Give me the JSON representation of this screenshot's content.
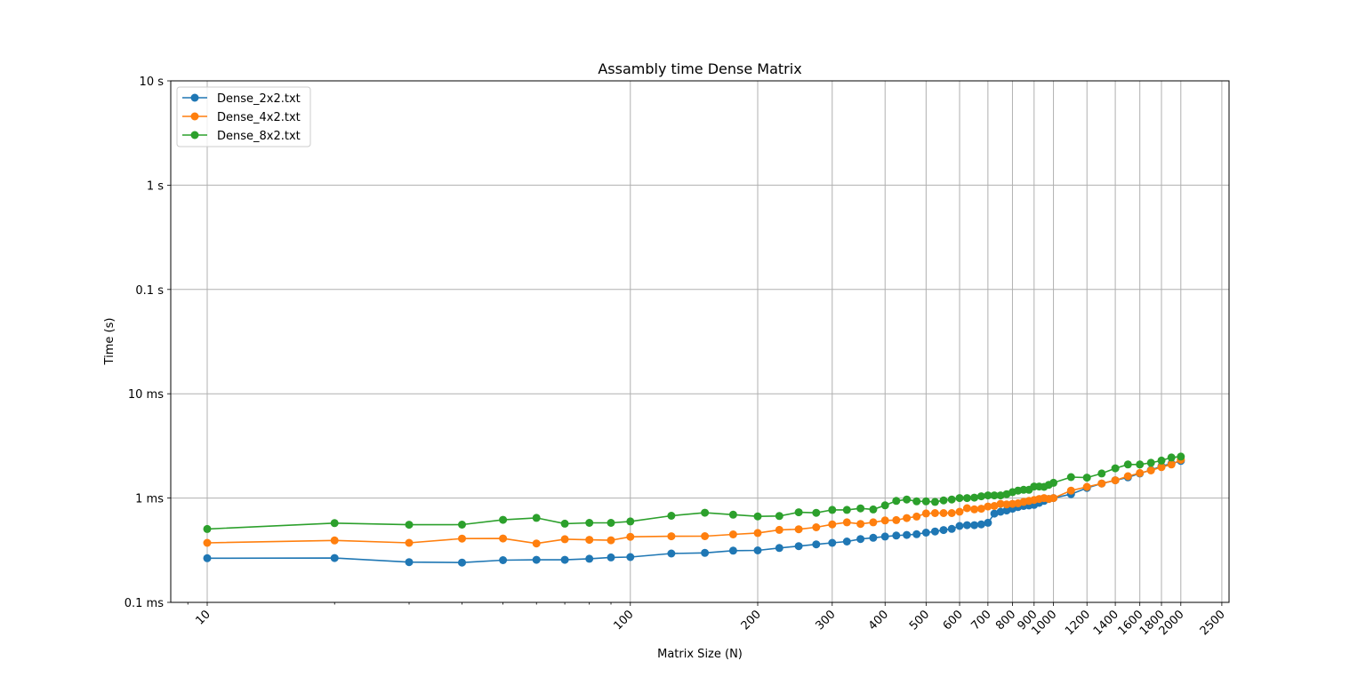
{
  "chart_data": {
    "type": "line",
    "title": "Assambly time Dense Matrix",
    "xlabel": "Matrix Size (N)",
    "ylabel": "Time (s)",
    "xscale": "log",
    "yscale": "log",
    "xlim": [
      8.2,
      2600
    ],
    "ylim": [
      0.0001,
      10
    ],
    "grid": true,
    "legend_position": "top-left",
    "x_ticks": [
      10,
      100,
      200,
      300,
      400,
      500,
      600,
      700,
      800,
      900,
      1000,
      1200,
      1400,
      1600,
      1800,
      2000,
      2500
    ],
    "x_tick_labels": [
      "10",
      "100",
      "200",
      "300",
      "400",
      "500",
      "600",
      "700",
      "800",
      "900",
      "1000",
      "1200",
      "1400",
      "1600",
      "1800",
      "2000",
      "2500"
    ],
    "y_ticks": [
      0.0001,
      0.001,
      0.01,
      0.1,
      1,
      10
    ],
    "y_tick_labels": [
      "0.1 ms",
      "1 ms",
      "10 ms",
      "0.1 s",
      "1 s",
      "10 s"
    ],
    "series": [
      {
        "name": "Dense_2x2.txt",
        "color": "#1f77b4",
        "x": [
          10,
          20,
          30,
          40,
          50,
          60,
          70,
          80,
          90,
          100,
          125,
          150,
          175,
          200,
          225,
          250,
          275,
          300,
          325,
          350,
          375,
          400,
          425,
          450,
          475,
          500,
          525,
          550,
          575,
          600,
          625,
          650,
          675,
          700,
          725,
          750,
          775,
          800,
          825,
          850,
          875,
          900,
          925,
          950,
          975,
          1000,
          1100,
          1200,
          1300,
          1400,
          1500,
          1600,
          1700,
          1800,
          1900,
          2000
        ],
        "y": [
          0.000265,
          0.000266,
          0.000243,
          0.000241,
          0.000254,
          0.000256,
          0.000256,
          0.000262,
          0.00027,
          0.000272,
          0.000294,
          0.000298,
          0.000313,
          0.000315,
          0.000332,
          0.000346,
          0.00036,
          0.000372,
          0.000383,
          0.000405,
          0.000416,
          0.000428,
          0.000437,
          0.000443,
          0.00045,
          0.000466,
          0.000478,
          0.000494,
          0.000506,
          0.00054,
          0.00055,
          0.00055,
          0.00056,
          0.00058,
          0.00071,
          0.00074,
          0.00076,
          0.00079,
          0.00082,
          0.00084,
          0.00085,
          0.00086,
          0.0009,
          0.00094,
          0.00098,
          0.001,
          0.00109,
          0.00125,
          0.00138,
          0.00148,
          0.00158,
          0.00172,
          0.00186,
          0.00202,
          0.00214,
          0.00227
        ]
      },
      {
        "name": "Dense_4x2.txt",
        "color": "#ff7f0e",
        "x": [
          10,
          20,
          30,
          40,
          50,
          60,
          70,
          80,
          90,
          100,
          125,
          150,
          175,
          200,
          225,
          250,
          275,
          300,
          325,
          350,
          375,
          400,
          425,
          450,
          475,
          500,
          525,
          550,
          575,
          600,
          625,
          650,
          675,
          700,
          725,
          750,
          775,
          800,
          825,
          850,
          875,
          900,
          925,
          950,
          975,
          1000,
          1100,
          1200,
          1300,
          1400,
          1500,
          1600,
          1700,
          1800,
          1900,
          2000
        ],
        "y": [
          0.000372,
          0.000392,
          0.000372,
          0.000409,
          0.00041,
          0.000367,
          0.000403,
          0.000398,
          0.000394,
          0.000425,
          0.00043,
          0.000431,
          0.000448,
          0.000463,
          0.000496,
          0.000502,
          0.000525,
          0.00056,
          0.000585,
          0.000565,
          0.000585,
          0.00061,
          0.000615,
          0.000643,
          0.000665,
          0.000712,
          0.000718,
          0.000718,
          0.000718,
          0.00074,
          0.0008,
          0.00078,
          0.00079,
          0.00083,
          0.00084,
          0.00088,
          0.00087,
          0.00088,
          0.00089,
          0.00092,
          0.00094,
          0.00096,
          0.00098,
          0.001,
          0.00098,
          0.001,
          0.00118,
          0.00128,
          0.00138,
          0.00148,
          0.00162,
          0.00174,
          0.00184,
          0.00198,
          0.0021,
          0.00233
        ]
      },
      {
        "name": "Dense_8x2.txt",
        "color": "#2ca02c",
        "x": [
          10,
          20,
          30,
          40,
          50,
          60,
          70,
          80,
          90,
          100,
          125,
          150,
          175,
          200,
          225,
          250,
          275,
          300,
          325,
          350,
          375,
          400,
          425,
          450,
          475,
          500,
          525,
          550,
          575,
          600,
          625,
          650,
          675,
          700,
          725,
          750,
          775,
          800,
          825,
          850,
          875,
          900,
          925,
          950,
          975,
          1000,
          1100,
          1200,
          1300,
          1400,
          1500,
          1600,
          1700,
          1800,
          1900,
          2000
        ],
        "y": [
          0.000505,
          0.000575,
          0.000555,
          0.000556,
          0.000618,
          0.000646,
          0.000568,
          0.000578,
          0.000578,
          0.000597,
          0.000677,
          0.000723,
          0.000693,
          0.000668,
          0.000673,
          0.00073,
          0.000722,
          0.000771,
          0.000771,
          0.000796,
          0.000778,
          0.000851,
          0.00094,
          0.00097,
          0.00093,
          0.00093,
          0.00092,
          0.00095,
          0.00097,
          0.001,
          0.001,
          0.00101,
          0.00104,
          0.00106,
          0.00106,
          0.00106,
          0.00109,
          0.00114,
          0.00118,
          0.0012,
          0.0012,
          0.00129,
          0.00129,
          0.00128,
          0.00134,
          0.0014,
          0.00159,
          0.00157,
          0.00172,
          0.00193,
          0.0021,
          0.0021,
          0.00218,
          0.00229,
          0.00245,
          0.0025
        ]
      }
    ]
  }
}
